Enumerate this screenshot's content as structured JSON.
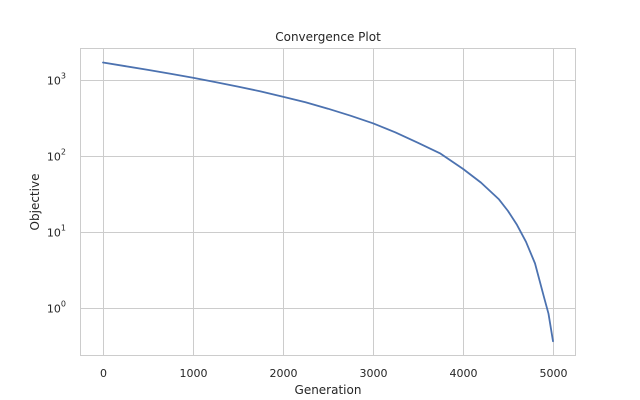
{
  "chart_data": {
    "type": "line",
    "title": "Convergence Plot",
    "xlabel": "Generation",
    "ylabel": "Objective",
    "xlim": [
      -250,
      5250
    ],
    "ylim": [
      0.24,
      2600
    ],
    "yscale": "log",
    "grid": true,
    "x_ticks": [
      0,
      1000,
      2000,
      3000,
      4000,
      5000
    ],
    "x_tick_labels": [
      "0",
      "1000",
      "2000",
      "3000",
      "4000",
      "5000"
    ],
    "y_ticks": [
      1,
      10,
      100,
      1000
    ],
    "y_tick_labels": [
      {
        "base": "10",
        "exp": "0"
      },
      {
        "base": "10",
        "exp": "1"
      },
      {
        "base": "10",
        "exp": "2"
      },
      {
        "base": "10",
        "exp": "3"
      }
    ],
    "series": [
      {
        "color": "#4c72b0",
        "x": [
          0,
          250,
          500,
          750,
          1000,
          1250,
          1500,
          1750,
          2000,
          2250,
          2500,
          2750,
          3000,
          3250,
          3500,
          3750,
          4000,
          4200,
          4400,
          4500,
          4600,
          4700,
          4800,
          4900,
          4950,
          5000
        ],
        "y": [
          1700,
          1520,
          1360,
          1210,
          1070,
          940,
          820,
          710,
          605,
          510,
          420,
          340,
          270,
          205,
          150,
          108,
          68,
          45,
          27,
          19,
          12.5,
          7.5,
          3.9,
          1.4,
          0.85,
          0.37
        ]
      }
    ]
  }
}
